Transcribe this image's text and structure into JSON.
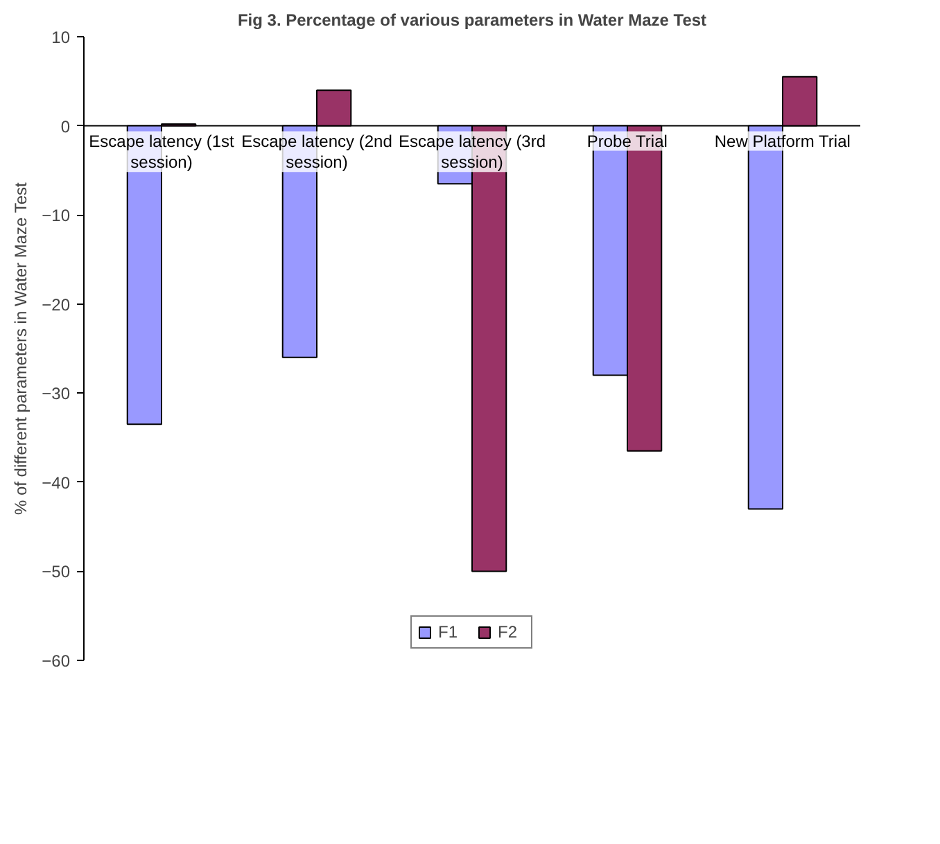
{
  "chart_data": {
    "type": "bar",
    "title": "Fig 3. Percentage of various parameters in Water Maze Test",
    "ylabel": "% of different parameters in Water Maze Test",
    "categories": [
      "Escape latency (1st session)",
      "Escape latency (2nd session)",
      "Escape latency (3rd session)",
      "Probe Trial",
      "New Platform Trial"
    ],
    "series": [
      {
        "name": "F1",
        "color": "#9999ff",
        "values": [
          -33.5,
          -26,
          -6.5,
          -28,
          -43
        ]
      },
      {
        "name": "F2",
        "color": "#993366",
        "values": [
          0.2,
          4,
          -50,
          -36.5,
          5.5
        ]
      }
    ],
    "ylim": [
      -60,
      10
    ],
    "yticks": [
      -60,
      -50,
      -40,
      -30,
      -20,
      -10,
      0,
      10
    ],
    "grid": false,
    "legend": "bottom"
  }
}
